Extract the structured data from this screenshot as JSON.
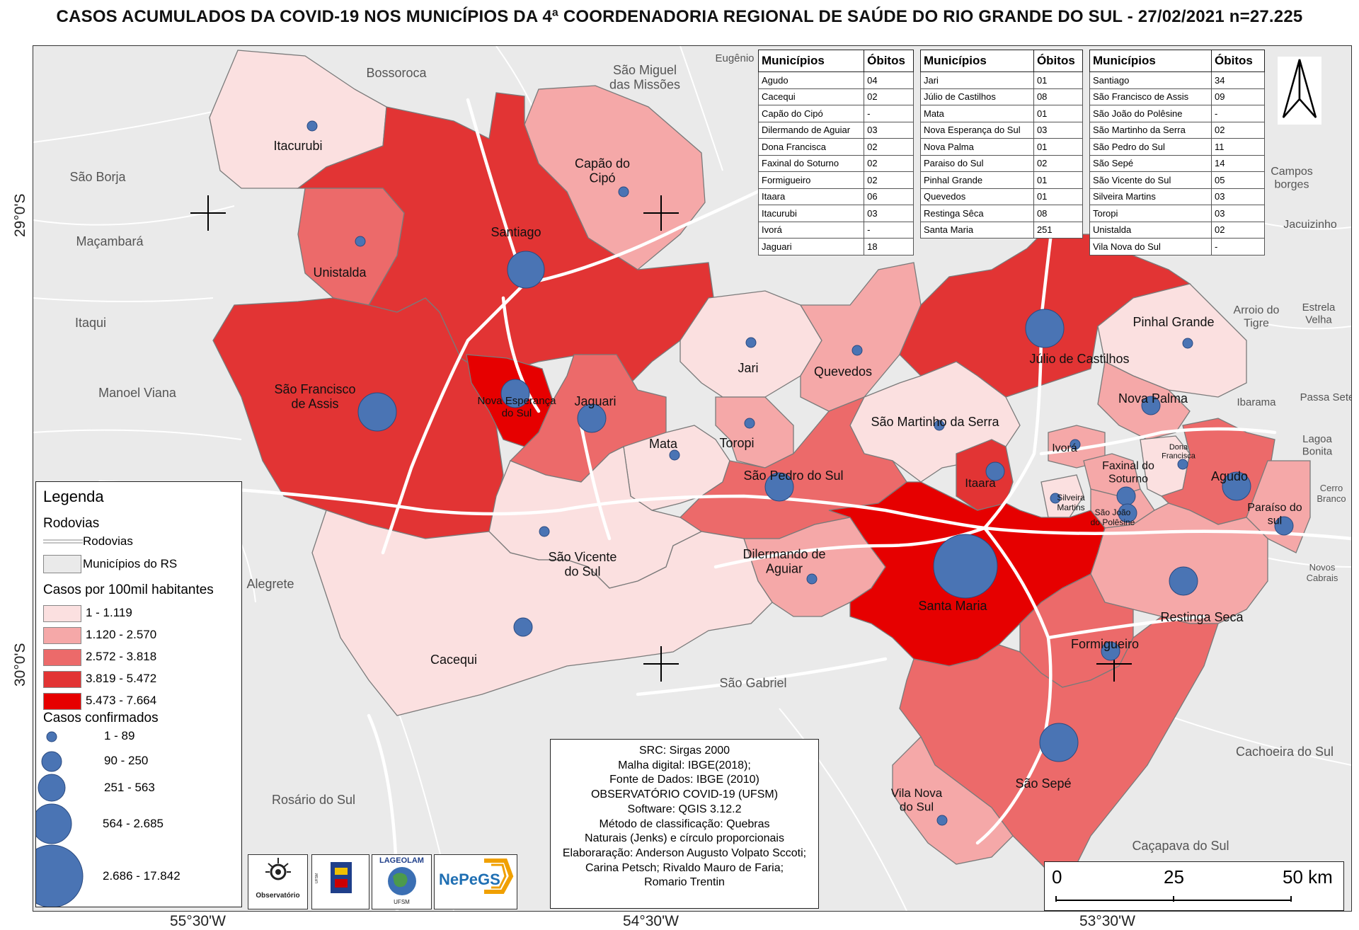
{
  "title": "CASOS ACUMULADOS DA COVID-19 NOS MUNICÍPIOS DA 4ª COORDENADORIA REGIONAL DE SAÚDE DO RIO GRANDE DO SUL - 27/02/2021 n=27.225",
  "coordinates": {
    "lat_top": "29°0'S",
    "lat_bottom": "30°0'S",
    "lon_left": "55°30'W",
    "lon_mid": "54°30'W",
    "lon_right": "53°30'W"
  },
  "colors": {
    "class1": "#fbe0e0",
    "class2": "#f5a8a8",
    "class3": "#ec6a6a",
    "class4": "#e23434",
    "class5": "#e60000",
    "neighbor": "#eaeaea",
    "circle": "#4a74b4",
    "road": "#ffffff"
  },
  "municipality_labels": [
    {
      "id": "itacurubi",
      "text": "Itacurubi"
    },
    {
      "id": "capao",
      "text": "Capão do Cipó"
    },
    {
      "id": "santiago",
      "text": "Santiago"
    },
    {
      "id": "unistalda",
      "text": "Unistalda"
    },
    {
      "id": "sfa",
      "text": "São Francisco de Assis"
    },
    {
      "id": "nova_esp",
      "text": "Nova Esperança do Sul"
    },
    {
      "id": "jaguari",
      "text": "Jaguari"
    },
    {
      "id": "mata",
      "text": "Mata"
    },
    {
      "id": "jari",
      "text": "Jari"
    },
    {
      "id": "toropi",
      "text": "Toropi"
    },
    {
      "id": "quevedos",
      "text": "Quevedos"
    },
    {
      "id": "julio",
      "text": "Júlio de Castilhos"
    },
    {
      "id": "pinhal",
      "text": "Pinhal Grande"
    },
    {
      "id": "nova_palma",
      "text": "Nova Palma"
    },
    {
      "id": "sms",
      "text": "São Martinho da Serra"
    },
    {
      "id": "spds",
      "text": "São Pedro do Sul"
    },
    {
      "id": "svs",
      "text": "São Vicente do Sul"
    },
    {
      "id": "dilermando",
      "text": "Dilermando de Aguiar"
    },
    {
      "id": "cacequi",
      "text": "Cacequi"
    },
    {
      "id": "itaara",
      "text": "Itaara"
    },
    {
      "id": "ivora",
      "text": "Ivorá"
    },
    {
      "id": "faxinal",
      "text": "Faxinal do Soturno"
    },
    {
      "id": "dona",
      "text": "Dona Francisca"
    },
    {
      "id": "agudo",
      "text": "Agudo"
    },
    {
      "id": "paraiso",
      "text": "Paraíso do sul"
    },
    {
      "id": "silveira",
      "text": "Silveira Martins"
    },
    {
      "id": "sjp",
      "text": "São João do Polêsine"
    },
    {
      "id": "santa_maria",
      "text": "Santa Maria"
    },
    {
      "id": "restinga",
      "text": "Restinga Seca"
    },
    {
      "id": "formigueiro",
      "text": "Formigueiro"
    },
    {
      "id": "sao_sepe",
      "text": "São Sepé"
    },
    {
      "id": "vila_nova",
      "text": "Vila Nova do Sul"
    }
  ],
  "neighbor_labels": [
    {
      "text": "Bossoroca"
    },
    {
      "text": "São Miguel das Missões"
    },
    {
      "text": "Eugênio"
    },
    {
      "text": "São Borja"
    },
    {
      "text": "Maçambará"
    },
    {
      "text": "Itaqui"
    },
    {
      "text": "Manoel Viana"
    },
    {
      "text": "Alegrete"
    },
    {
      "text": "São Gabriel"
    },
    {
      "text": "Rosário do Sul"
    },
    {
      "text": "Campos borges"
    },
    {
      "text": "Jacuizinho"
    },
    {
      "text": "Arroio do Tigre"
    },
    {
      "text": "Estrela Velha"
    },
    {
      "text": "Ibarama"
    },
    {
      "text": "Passa Sete"
    },
    {
      "text": "Lagoa Bonita"
    },
    {
      "text": "Cerro Branco"
    },
    {
      "text": "Novos Cabrais"
    },
    {
      "text": "Cachoeira do Sul"
    },
    {
      "text": "Caçapava do Sul"
    }
  ],
  "deaths_header": {
    "municipio": "Municípios",
    "obitos": "Óbitos"
  },
  "deaths_tables": [
    [
      [
        "Agudo",
        "04"
      ],
      [
        "Cacequi",
        "02"
      ],
      [
        "Capão do Cipó",
        "-"
      ],
      [
        "Dilermando de Aguiar",
        "03"
      ],
      [
        "Dona Francisca",
        "02"
      ],
      [
        "Faxinal do Soturno",
        "02"
      ],
      [
        "Formigueiro",
        "02"
      ],
      [
        "Itaara",
        "06"
      ],
      [
        "Itacurubi",
        "03"
      ],
      [
        "Ivorá",
        "-"
      ],
      [
        "Jaguari",
        "18"
      ]
    ],
    [
      [
        "Jari",
        "01"
      ],
      [
        "Júlio de Castilhos",
        "08"
      ],
      [
        "Mata",
        "01"
      ],
      [
        "Nova Esperança do Sul",
        "03"
      ],
      [
        "Nova Palma",
        "01"
      ],
      [
        "Paraiso do Sul",
        "02"
      ],
      [
        "Pinhal Grande",
        "01"
      ],
      [
        "Quevedos",
        "01"
      ],
      [
        "Restinga Sêca",
        "08"
      ],
      [
        "Santa Maria",
        "251"
      ]
    ],
    [
      [
        "Santiago",
        "34"
      ],
      [
        "São Francisco de Assis",
        "09"
      ],
      [
        "São João do Polêsine",
        "-"
      ],
      [
        "São Martinho da Serra",
        "02"
      ],
      [
        "São Pedro do Sul",
        "11"
      ],
      [
        "São Sepé",
        "14"
      ],
      [
        "São Vicente do Sul",
        "05"
      ],
      [
        "Silveira Martins",
        "03"
      ],
      [
        "Toropi",
        "03"
      ],
      [
        "Unistalda",
        "02"
      ],
      [
        "Vila Nova do Sul",
        "-"
      ]
    ]
  ],
  "legend": {
    "title": "Legenda",
    "roads_header": "Rodovias",
    "roads_item": "Rodovias",
    "municipalities_item": "Municípios do RS",
    "rate_header": "Casos por 100mil habitantes",
    "rate_classes": [
      "1 - 1.119",
      "1.120 - 2.570",
      "2.572 - 3.818",
      "3.819 - 5.472",
      "5.473 - 7.664"
    ],
    "cases_header": "Casos confirmados",
    "case_classes": [
      "1 - 89",
      "90 - 250",
      "251 - 563",
      "564 - 2.685",
      "2.686 - 17.842"
    ]
  },
  "credits": [
    "SRC: Sirgas 2000",
    "Malha digital: IBGE(2018);",
    "Fonte de Dados: IBGE (2010)",
    "OBSERVATÓRIO COVID-19 (UFSM)",
    "Software: QGIS 3.12.2",
    "Método de classificação: Quebras",
    "Naturais (Jenks) e círculo proporcionais",
    "Elaboraração: Anderson Augusto Volpato Sccoti;",
    "Carina Petsch; Rivaldo Mauro de Faria;",
    "Romario Trentin"
  ],
  "logos": {
    "observatorio": "Observatório",
    "ufsm": "Universidade Federal de Santa Maria",
    "lageolam": "LAGEOLAM",
    "lageolam_sub": "UFSM",
    "nepegs": "NePeGS"
  },
  "scale": {
    "labels": [
      "0",
      "25",
      "50 km"
    ]
  }
}
